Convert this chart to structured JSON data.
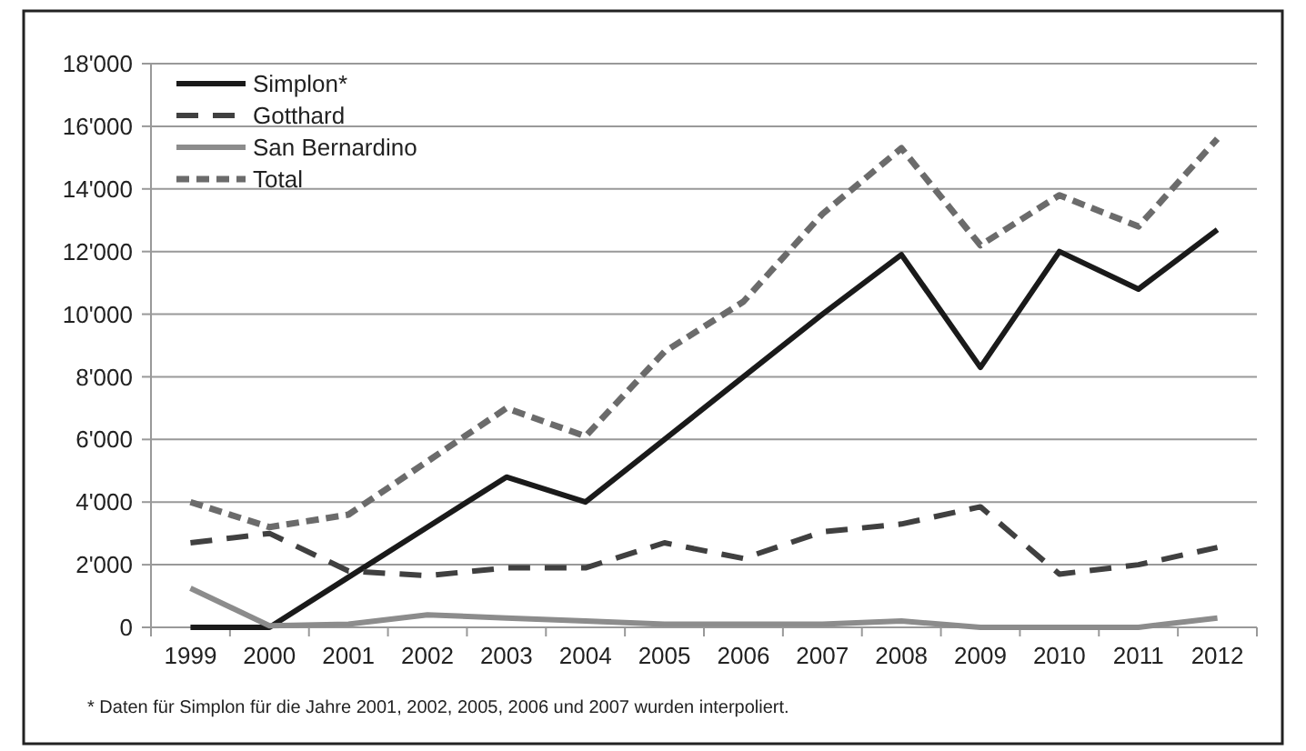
{
  "chart_data": {
    "type": "line",
    "categories": [
      "1999",
      "2000",
      "2001",
      "2002",
      "2003",
      "2004",
      "2005",
      "2006",
      "2007",
      "2008",
      "2009",
      "2010",
      "2011",
      "2012"
    ],
    "series": [
      {
        "name": "Simplon*",
        "color": "#1a1a1a",
        "line_style": "solid",
        "values": [
          0,
          0,
          1600,
          3200,
          4800,
          4000,
          6000,
          8000,
          10000,
          11900,
          8300,
          12000,
          10800,
          12700
        ]
      },
      {
        "name": "Gotthard",
        "color": "#404040",
        "line_style": "dashed",
        "values": [
          2700,
          3000,
          1800,
          1650,
          1900,
          1900,
          2700,
          2200,
          3050,
          3300,
          3850,
          1700,
          2000,
          2550
        ]
      },
      {
        "name": "San Bernardino",
        "color": "#8c8c8c",
        "line_style": "solid",
        "values": [
          1250,
          50,
          100,
          400,
          300,
          200,
          100,
          100,
          100,
          200,
          0,
          0,
          0,
          300
        ]
      },
      {
        "name": "Total",
        "color": "#6b6b6b",
        "line_style": "dotted",
        "values": [
          4000,
          3200,
          3600,
          5300,
          7000,
          6100,
          8800,
          10400,
          13200,
          15300,
          12200,
          13800,
          12800,
          15600
        ]
      }
    ],
    "ylim": [
      0,
      18000
    ],
    "yticks": [
      {
        "value": 0,
        "label": "0"
      },
      {
        "value": 2000,
        "label": "2'000"
      },
      {
        "value": 4000,
        "label": "4'000"
      },
      {
        "value": 6000,
        "label": "6'000"
      },
      {
        "value": 8000,
        "label": "8'000"
      },
      {
        "value": 10000,
        "label": "10'000"
      },
      {
        "value": 12000,
        "label": "12'000"
      },
      {
        "value": 14000,
        "label": "14'000"
      },
      {
        "value": 16000,
        "label": "16'000"
      },
      {
        "value": 18000,
        "label": "18'000"
      }
    ],
    "grid": "y",
    "legend": "top left",
    "marker": "none",
    "annotations": [
      "* Daten für Simplon für die Jahre 2001, 2002, 2005, 2006 und 2007 wurden interpoliert."
    ]
  }
}
